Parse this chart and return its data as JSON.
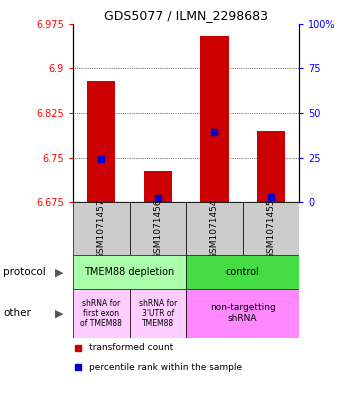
{
  "title": "GDS5077 / ILMN_2298683",
  "samples": [
    "GSM1071457",
    "GSM1071456",
    "GSM1071454",
    "GSM1071455"
  ],
  "bar_tops": [
    6.878,
    6.728,
    6.955,
    6.795
  ],
  "bar_bottoms": [
    6.675,
    6.675,
    6.675,
    6.675
  ],
  "blue_markers": [
    6.748,
    6.683,
    6.793,
    6.684
  ],
  "ylim": [
    6.675,
    6.975
  ],
  "yticks_left": [
    6.675,
    6.75,
    6.825,
    6.9,
    6.975
  ],
  "yticks_right": [
    0,
    25,
    50,
    75,
    100
  ],
  "bar_color": "#cc0000",
  "blue_color": "#0000cc",
  "protocol_labels": [
    "TMEM88 depletion",
    "control"
  ],
  "protocol_color_left": "#aaffaa",
  "protocol_color_right": "#44dd44",
  "other_labels": [
    "shRNA for\nfirst exon\nof TMEM88",
    "shRNA for\n3'UTR of\nTMEM88",
    "non-targetting\nshRNA"
  ],
  "other_color_left": "#ffccff",
  "other_color_right": "#ff88ff",
  "legend_items": [
    "transformed count",
    "percentile rank within the sample"
  ],
  "legend_colors": [
    "#cc0000",
    "#0000cc"
  ],
  "bar_width": 0.5
}
